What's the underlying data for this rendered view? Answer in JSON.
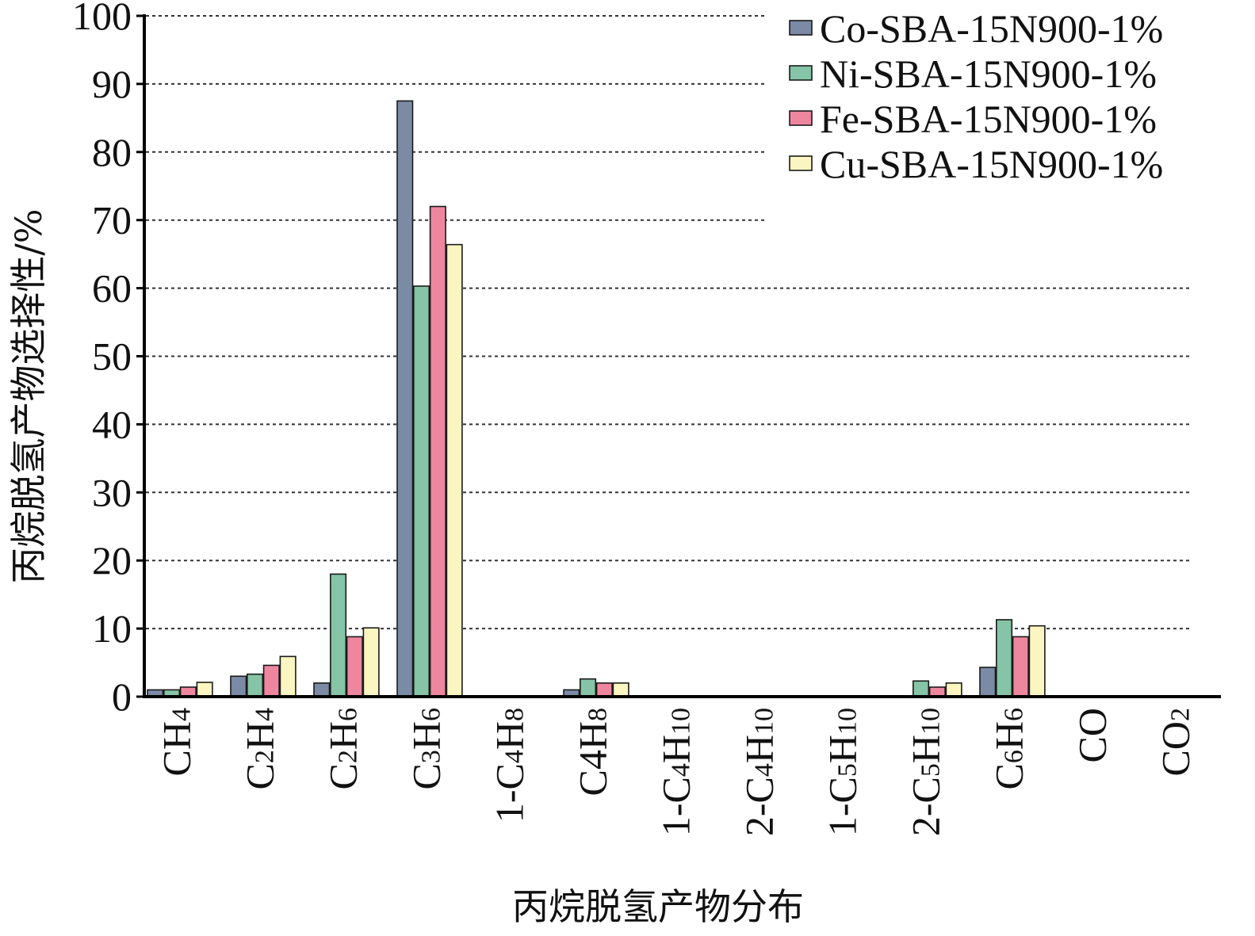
{
  "chart_data": {
    "type": "bar",
    "title": "",
    "xlabel": "丙烷脱氢产物分布",
    "ylabel": "丙烷脱氢产物选择性/%",
    "ylim": [
      0,
      100
    ],
    "yticks": [
      0,
      10,
      20,
      30,
      40,
      50,
      60,
      70,
      80,
      90,
      100
    ],
    "grid": "horizontal-dotted",
    "legend_position": "top-right",
    "categories": [
      {
        "main": "CH",
        "sub": "4",
        "label": "CH4"
      },
      {
        "main": "C",
        "sub": "2",
        "tail": "H",
        "sub2": "4",
        "label": "C2H4"
      },
      {
        "main": "C",
        "sub": "2",
        "tail": "H",
        "sub2": "6",
        "label": "C2H6"
      },
      {
        "main": "C",
        "sub": "3",
        "tail": "H",
        "sub2": "6",
        "label": "C3H6"
      },
      {
        "main": "1-C",
        "sub": "4",
        "tail": "H",
        "sub2": "8",
        "label": "1-C4H8"
      },
      {
        "main": "C4H",
        "sub": "8",
        "label": "C4H8"
      },
      {
        "main": "1-C",
        "sub": "4",
        "tail": "H",
        "sub2": "10",
        "label": "1-C4H10"
      },
      {
        "main": "2-C",
        "sub": "4",
        "tail": "H",
        "sub2": "10",
        "label": "2-C4H10"
      },
      {
        "main": "1-C",
        "sub": "5",
        "tail": "H",
        "sub2": "10",
        "label": "1-C5H10"
      },
      {
        "main": "2-C",
        "sub": "5",
        "tail": "H",
        "sub2": "10",
        "label": "2-C5H10"
      },
      {
        "main": "C",
        "sub": "6",
        "tail": "H",
        "sub2": "6",
        "label": "C6H6"
      },
      {
        "main": "CO",
        "label": "CO"
      },
      {
        "main": "CO",
        "sub": "2",
        "label": "CO2"
      }
    ],
    "series": [
      {
        "name": "Co-SBA-15N900-1%",
        "color": "#7b8aa5",
        "values": [
          1.0,
          3.0,
          2.0,
          87.5,
          0,
          1.0,
          0,
          0,
          0,
          0,
          4.3,
          0,
          0
        ]
      },
      {
        "name": "Ni-SBA-15N900-1%",
        "color": "#85c4a6",
        "values": [
          1.0,
          3.3,
          18.0,
          60.3,
          0,
          2.6,
          0,
          0,
          0,
          2.3,
          11.3,
          0,
          0
        ]
      },
      {
        "name": "Fe-SBA-15N900-1%",
        "color": "#ef86a0",
        "values": [
          1.4,
          4.6,
          8.8,
          72.0,
          0,
          2.0,
          0,
          0,
          0,
          1.4,
          8.8,
          0,
          0
        ]
      },
      {
        "name": "Cu-SBA-15N900-1%",
        "color": "#fbf6c1",
        "values": [
          2.1,
          5.9,
          10.1,
          66.4,
          0,
          2.0,
          0,
          0,
          0,
          2.0,
          10.4,
          0,
          0
        ]
      }
    ]
  }
}
